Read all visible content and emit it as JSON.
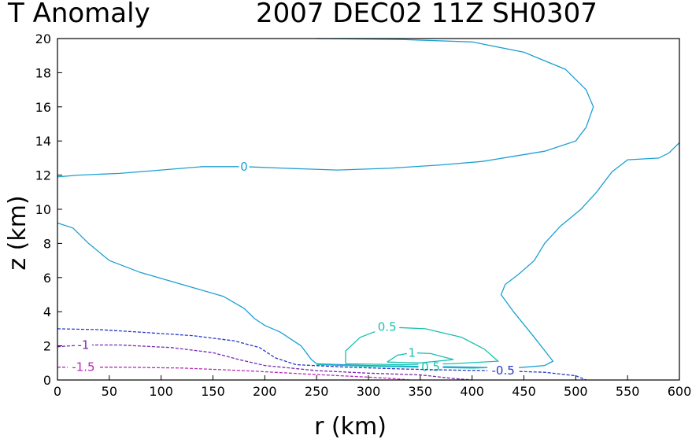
{
  "chart_data": {
    "type": "contour",
    "title_left": "T Anomaly",
    "title_right": "2007 DEC02 11Z   SH0307",
    "xlabel": "r (km)",
    "ylabel": "z (km)",
    "xlim": [
      0,
      600
    ],
    "ylim": [
      0,
      20
    ],
    "x_ticks": [
      0,
      50,
      100,
      150,
      200,
      250,
      300,
      350,
      400,
      450,
      500,
      550,
      600
    ],
    "y_ticks": [
      0,
      2,
      4,
      6,
      8,
      10,
      12,
      14,
      16,
      18,
      20
    ],
    "contours": [
      {
        "level": "0",
        "color": "#1ca0d2",
        "dashed": false,
        "label": {
          "text": "0",
          "x": 180,
          "y": 12.5
        },
        "points": [
          [
            0,
            11.9
          ],
          [
            20,
            12.0
          ],
          [
            60,
            12.1
          ],
          [
            100,
            12.3
          ],
          [
            140,
            12.5
          ],
          [
            180,
            12.5
          ],
          [
            220,
            12.4
          ],
          [
            270,
            12.3
          ],
          [
            320,
            12.4
          ],
          [
            370,
            12.6
          ],
          [
            410,
            12.8
          ],
          [
            440,
            13.1
          ],
          [
            470,
            13.4
          ],
          [
            500,
            14.0
          ],
          [
            510,
            14.8
          ],
          [
            517,
            16.0
          ],
          [
            510,
            17.0
          ],
          [
            490,
            18.2
          ],
          [
            450,
            19.2
          ],
          [
            400,
            19.8
          ],
          [
            330,
            19.95
          ],
          [
            250,
            20.0
          ]
        ]
      },
      {
        "level": "0",
        "color": "#1ca0d2",
        "dashed": false,
        "points": [
          [
            0,
            9.2
          ],
          [
            15,
            8.9
          ],
          [
            30,
            8.0
          ],
          [
            50,
            7.0
          ],
          [
            80,
            6.3
          ],
          [
            120,
            5.6
          ],
          [
            160,
            4.9
          ],
          [
            180,
            4.2
          ],
          [
            190,
            3.6
          ],
          [
            200,
            3.2
          ],
          [
            215,
            2.8
          ],
          [
            235,
            2.0
          ],
          [
            245,
            1.2
          ],
          [
            250,
            0.95
          ],
          [
            300,
            0.85
          ],
          [
            350,
            0.8
          ],
          [
            400,
            0.75
          ],
          [
            440,
            0.7
          ],
          [
            470,
            0.85
          ],
          [
            478,
            1.1
          ],
          [
            460,
            2.5
          ],
          [
            440,
            4.0
          ],
          [
            428,
            5.0
          ],
          [
            432,
            5.6
          ],
          [
            445,
            6.2
          ],
          [
            460,
            7.0
          ],
          [
            470,
            8.0
          ],
          [
            485,
            9.0
          ],
          [
            505,
            10.0
          ],
          [
            520,
            11.0
          ],
          [
            535,
            12.2
          ],
          [
            550,
            12.9
          ],
          [
            565,
            12.95
          ],
          [
            580,
            13.0
          ],
          [
            590,
            13.3
          ],
          [
            600,
            13.9
          ]
        ]
      },
      {
        "level": "0.5",
        "color": "#18c0b0",
        "dashed": false,
        "label": {
          "text": "0.5",
          "x": 318,
          "y": 3.1
        },
        "points": [
          [
            278,
            0.95
          ],
          [
            278,
            1.7
          ],
          [
            292,
            2.5
          ],
          [
            318,
            3.1
          ],
          [
            355,
            3.0
          ],
          [
            390,
            2.5
          ],
          [
            412,
            1.8
          ],
          [
            425,
            1.1
          ],
          [
            380,
            0.95
          ],
          [
            330,
            0.9
          ],
          [
            278,
            0.95
          ]
        ]
      },
      {
        "level": "0.5",
        "color": "#18c0b0",
        "dashed": false,
        "label": {
          "text": "0.5",
          "x": 360,
          "y": 0.75
        },
        "points": [
          [
            250,
            0.9
          ],
          [
            300,
            0.8
          ],
          [
            350,
            0.75
          ],
          [
            400,
            0.7
          ],
          [
            430,
            0.75
          ]
        ]
      },
      {
        "level": "1",
        "color": "#18c0b0",
        "dashed": false,
        "label": {
          "text": "1",
          "x": 342,
          "y": 1.6
        },
        "points": [
          [
            318,
            1.05
          ],
          [
            328,
            1.45
          ],
          [
            342,
            1.6
          ],
          [
            360,
            1.55
          ],
          [
            382,
            1.2
          ],
          [
            350,
            1.0
          ],
          [
            318,
            1.05
          ]
        ]
      },
      {
        "level": "-0.5",
        "color": "#2838c8",
        "dashed": true,
        "label": {
          "text": "-0.5",
          "x": 430,
          "y": 0.55
        },
        "points": [
          [
            0,
            3.0
          ],
          [
            40,
            2.95
          ],
          [
            80,
            2.8
          ],
          [
            130,
            2.6
          ],
          [
            170,
            2.3
          ],
          [
            195,
            1.9
          ],
          [
            210,
            1.3
          ],
          [
            230,
            0.9
          ],
          [
            280,
            0.75
          ],
          [
            330,
            0.65
          ],
          [
            380,
            0.58
          ],
          [
            420,
            0.55
          ],
          [
            470,
            0.45
          ],
          [
            500,
            0.25
          ],
          [
            510,
            0.0
          ]
        ]
      },
      {
        "level": "-1",
        "color": "#7828b0",
        "dashed": true,
        "label": {
          "text": "-1",
          "x": 25,
          "y": 2.05
        },
        "points": [
          [
            0,
            1.95
          ],
          [
            25,
            2.05
          ],
          [
            60,
            2.05
          ],
          [
            110,
            1.9
          ],
          [
            150,
            1.6
          ],
          [
            175,
            1.2
          ],
          [
            200,
            0.85
          ],
          [
            250,
            0.55
          ],
          [
            300,
            0.4
          ],
          [
            350,
            0.3
          ],
          [
            380,
            0.1
          ],
          [
            400,
            0.0
          ]
        ]
      },
      {
        "level": "-1.5",
        "color": "#b828b8",
        "dashed": true,
        "label": {
          "text": "-1.5",
          "x": 25,
          "y": 0.75
        },
        "points": [
          [
            0,
            0.75
          ],
          [
            25,
            0.75
          ],
          [
            60,
            0.75
          ],
          [
            120,
            0.7
          ],
          [
            180,
            0.55
          ],
          [
            240,
            0.35
          ],
          [
            290,
            0.2
          ],
          [
            320,
            0.1
          ],
          [
            340,
            0.0
          ]
        ]
      }
    ]
  }
}
